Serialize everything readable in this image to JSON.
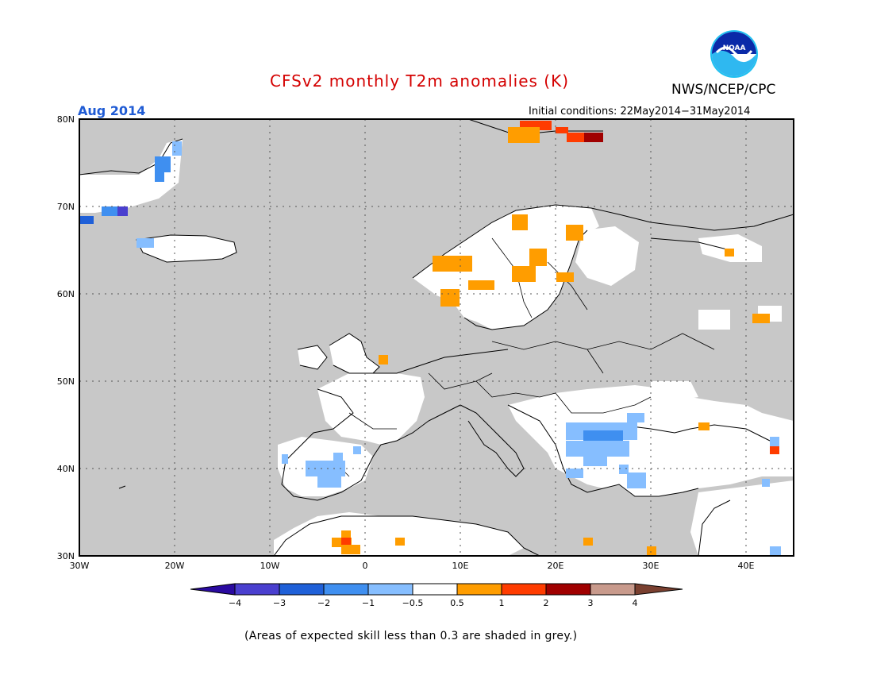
{
  "header": {
    "title": "CFSv2 monthly T2m anomalies (K)",
    "agency": "NWS/NCEP/CPC",
    "period": "Aug 2014",
    "initial_conditions": "Initial conditions: 22May2014−31May2014"
  },
  "logo": {
    "text": "NOAA",
    "icon": "noaa-logo-icon"
  },
  "map": {
    "lat_labels": [
      "80N",
      "70N",
      "60N",
      "50N",
      "40N",
      "30N"
    ],
    "lon_labels": [
      "30W",
      "20W",
      "10W",
      "0",
      "10E",
      "20E",
      "30E",
      "40E"
    ],
    "land_color": "#ffffff",
    "skill_shade_color": "#c8c8c8",
    "graticule": "dotted"
  },
  "colorbar": {
    "labels": [
      "−4",
      "−3",
      "−2",
      "−1",
      "−0.5",
      "0.5",
      "1",
      "2",
      "3",
      "4"
    ],
    "colors": [
      "#2a0aa0",
      "#4a3fcf",
      "#1f60d8",
      "#3f8ff0",
      "#86beff",
      "#ffffff",
      "#ff9d00",
      "#ff3c00",
      "#a00000",
      "#c89a8c",
      "#7a4030"
    ]
  },
  "footnote": "(Areas of expected skill less than 0.3 are shaded in grey.)"
}
